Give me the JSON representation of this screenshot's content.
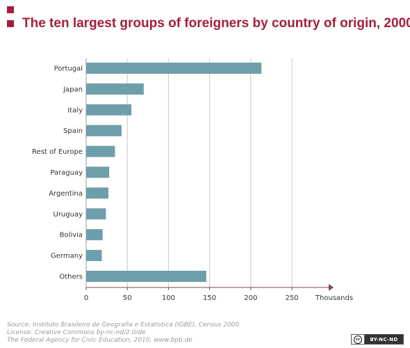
{
  "title": {
    "line1": "",
    "line2": "The ten largest groups of foreigners by country of origin, 2000"
  },
  "colors": {
    "title": "#a31f3b",
    "bar": "#6e9ea9",
    "grid": "#c8c8c8",
    "axis": "#7a4a52"
  },
  "chart_data": {
    "type": "bar",
    "orientation": "horizontal",
    "title": "The ten largest groups of foreigners by country of origin, 2000",
    "xlabel": "Thousands",
    "ylabel": "",
    "categories": [
      "Portugal",
      "Japan",
      "Italy",
      "Spain",
      "Rest of Europe",
      "Paraguay",
      "Argentina",
      "Uruguay",
      "Bolivia",
      "Germany",
      "Others"
    ],
    "values": [
      213,
      70,
      55,
      43,
      35,
      28,
      27,
      24,
      20,
      19,
      146
    ],
    "xlim": [
      0,
      250
    ],
    "xticks": [
      0,
      50,
      100,
      150,
      200,
      250
    ],
    "grid": true
  },
  "footer": {
    "source": "Source: Instituto Brasileiro de Geografia e Estatística (IGBE), Census 2000",
    "license": "License: Creative Commons by-nc-nd/2.0/de",
    "publisher": "The Federal Agency for Civic Education, 2010, www.bpb.de"
  },
  "badge": {
    "cc": "cc",
    "text": "BY-NC-ND"
  }
}
